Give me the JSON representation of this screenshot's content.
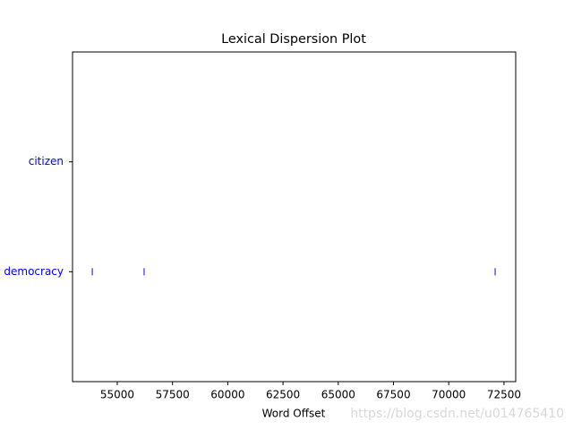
{
  "chart_data": {
    "type": "dispersion",
    "title": "Lexical Dispersion Plot",
    "x_label": "Word Offset",
    "categories": [
      "democracy",
      "citizen"
    ],
    "offsets": [
      [
        53870,
        56215,
        72100
      ],
      []
    ],
    "color": "#0000ff",
    "xlim": [
      52975,
      73030
    ],
    "xticks": [
      55000,
      57500,
      60000,
      62500,
      65000,
      67500,
      70000,
      72500
    ],
    "ylim": [
      -1,
      2
    ],
    "watermark": "https://blog.csdn.net/u014765410"
  }
}
